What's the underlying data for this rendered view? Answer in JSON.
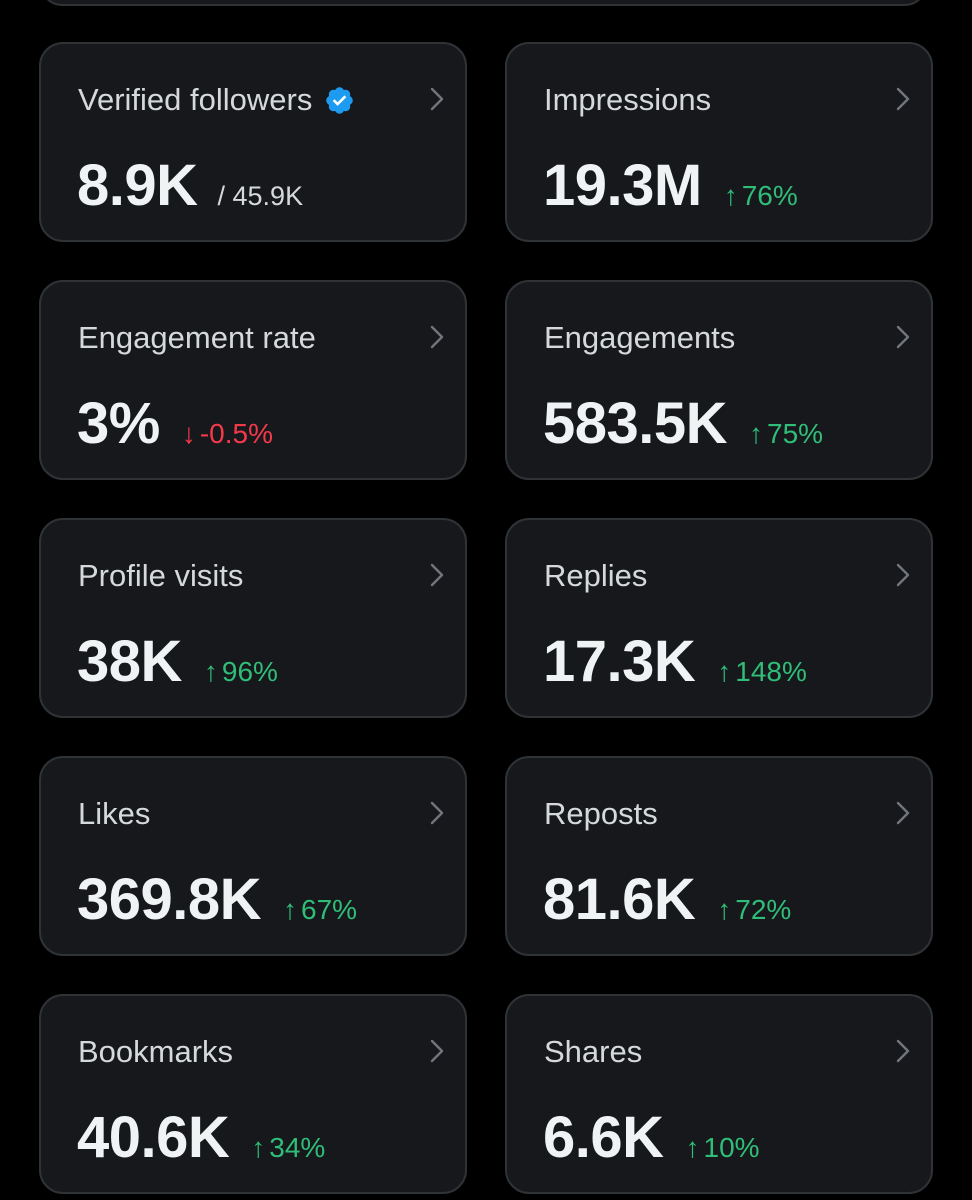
{
  "colors": {
    "background": "#000000",
    "card": "#16181c",
    "border": "#2f3336",
    "positive": "#2fbd78",
    "negative": "#f4394b",
    "verified_badge": "#1d9bf0"
  },
  "metrics": [
    {
      "label": "Verified followers",
      "value": "8.9K",
      "total": "/ 45.9K",
      "icon": "verified-badge-icon"
    },
    {
      "label": "Impressions",
      "value": "19.3M",
      "arrow": "↑",
      "change": "76%",
      "trend": "up"
    },
    {
      "label": "Engagement rate",
      "value": "3%",
      "arrow": "↓",
      "change": "-0.5%",
      "trend": "down"
    },
    {
      "label": "Engagements",
      "value": "583.5K",
      "arrow": "↑",
      "change": "75%",
      "trend": "up"
    },
    {
      "label": "Profile visits",
      "value": "38K",
      "arrow": "↑",
      "change": "96%",
      "trend": "up"
    },
    {
      "label": "Replies",
      "value": "17.3K",
      "arrow": "↑",
      "change": "148%",
      "trend": "up"
    },
    {
      "label": "Likes",
      "value": "369.8K",
      "arrow": "↑",
      "change": "67%",
      "trend": "up"
    },
    {
      "label": "Reposts",
      "value": "81.6K",
      "arrow": "↑",
      "change": "72%",
      "trend": "up"
    },
    {
      "label": "Bookmarks",
      "value": "40.6K",
      "arrow": "↑",
      "change": "34%",
      "trend": "up"
    },
    {
      "label": "Shares",
      "value": "6.6K",
      "arrow": "↑",
      "change": "10%",
      "trend": "up"
    }
  ]
}
